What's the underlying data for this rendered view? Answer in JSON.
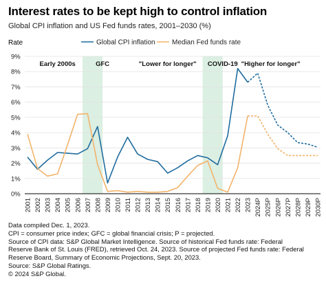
{
  "title": "Interest rates to be kept high to control inflation",
  "subtitle": "Global CPI inflation and US Fed funds rates, 2001–2030 (%)",
  "chart_data": {
    "type": "line",
    "ylabel": "Rate",
    "ylim": [
      0,
      9
    ],
    "y_ticks": [
      "0%",
      "1%",
      "2%",
      "3%",
      "4%",
      "5%",
      "6%",
      "7%",
      "8%",
      "9%"
    ],
    "x": [
      "2001",
      "2002",
      "2003",
      "2004",
      "2005",
      "2006",
      "2007",
      "2008",
      "2009",
      "2010",
      "2011",
      "2012",
      "2013",
      "2014",
      "2015",
      "2016",
      "2017",
      "2018",
      "2019",
      "2020",
      "2021",
      "2022",
      "2023",
      "2024P",
      "2025P",
      "2026P",
      "2027P",
      "2028P",
      "2029P",
      "2030P"
    ],
    "series": [
      {
        "name": "Global CPI inflation",
        "color": "#1f6c9e",
        "values": [
          2.4,
          1.6,
          2.2,
          2.7,
          2.65,
          2.6,
          2.95,
          4.4,
          0.7,
          2.4,
          3.7,
          2.6,
          2.25,
          2.1,
          1.35,
          1.7,
          2.15,
          2.5,
          2.35,
          1.9,
          3.8,
          8.2,
          7.3,
          7.9,
          5.8,
          4.5,
          4.0,
          3.35,
          3.25,
          3.05
        ],
        "projected_from": "2023"
      },
      {
        "name": "Median Fed funds rate",
        "color": "#f2b36a",
        "values": [
          3.9,
          1.65,
          1.15,
          1.3,
          3.2,
          5.2,
          5.25,
          1.9,
          0.15,
          0.2,
          0.1,
          0.15,
          0.1,
          0.1,
          0.15,
          0.4,
          1.15,
          1.85,
          2.15,
          0.35,
          0.1,
          1.7,
          5.1,
          5.1,
          3.9,
          2.95,
          2.5,
          2.5,
          2.5,
          2.5
        ],
        "projected_from": "2023"
      }
    ],
    "shaded_periods": [
      {
        "label": "GFC",
        "from": "2007",
        "to": "2008"
      },
      {
        "label": "COVID-19",
        "from": "2019",
        "to": "2020"
      }
    ],
    "period_labels": [
      {
        "label": "Early 2000s",
        "at": 3.0
      },
      {
        "label": "GFC",
        "at": 7.5
      },
      {
        "label": "\"Lower for longer\"",
        "at": 14.0
      },
      {
        "label": "COVID-19",
        "at": 19.5
      },
      {
        "label": "\"Higher for longer\"",
        "at": 24.3
      }
    ],
    "grid": "horizontal",
    "legend_position": "top"
  },
  "footnotes": [
    "Data compiled Dec. 1, 2023.",
    "CPI = consumer price index; GFC = global financial crisis; P = projected.",
    "Source of CPI data: S&P Global Market Intelligence. Source of historical Fed funds rate: Federal",
    "Reserve Bank of St. Louis (FRED), retrieved Oct. 24, 2023. Source of projected Fed funds rate: Federal",
    "Reserve Board, Summary of Economic Projections, Sept. 20, 2023.",
    "Source: S&P Global Ratings.",
    "© 2024 S&P Global."
  ]
}
